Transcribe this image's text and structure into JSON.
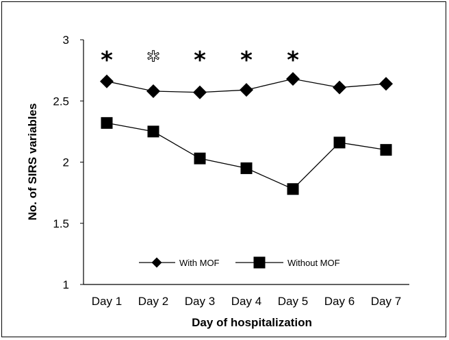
{
  "chart_data": {
    "type": "line",
    "xlabel": "Day of hospitalization",
    "ylabel": "No. of SIRS variables",
    "categories": [
      "Day 1",
      "Day 2",
      "Day 3",
      "Day 4",
      "Day 5",
      "Day 6",
      "Day 7"
    ],
    "ylim": [
      1,
      3
    ],
    "yticks": [
      "1",
      "1.5",
      "2",
      "2.5",
      "3"
    ],
    "grid": false,
    "legend_position": "bottom-center",
    "series": [
      {
        "name": "With MOF",
        "marker": "diamond",
        "color": "#000000",
        "values": [
          2.66,
          2.58,
          2.57,
          2.59,
          2.68,
          2.61,
          2.64
        ]
      },
      {
        "name": "Without MOF",
        "marker": "square",
        "color": "#000000",
        "values": [
          2.32,
          2.25,
          2.03,
          1.95,
          1.78,
          2.16,
          2.1
        ]
      }
    ],
    "annotations": [
      {
        "category": "Day 1",
        "text": "*",
        "style": "filled"
      },
      {
        "category": "Day 2",
        "text": "*",
        "style": "outline"
      },
      {
        "category": "Day 3",
        "text": "*",
        "style": "filled"
      },
      {
        "category": "Day 4",
        "text": "*",
        "style": "filled"
      },
      {
        "category": "Day 5",
        "text": "*",
        "style": "filled"
      }
    ]
  }
}
